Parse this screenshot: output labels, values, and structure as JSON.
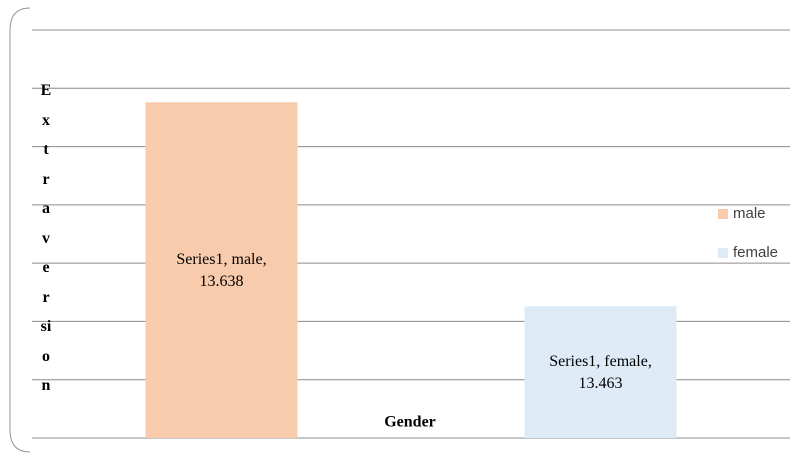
{
  "chart_data": {
    "type": "bar",
    "y_label": "Extraversion",
    "x_label": "Gender",
    "categories": [
      "male",
      "female"
    ],
    "series": [
      {
        "name": "Series1",
        "colors": [
          "#f8cbad",
          "#deebf7"
        ],
        "values": [
          13.638,
          13.463
        ],
        "value_labels": [
          "Series1, male, 13.638",
          "Series1, female, 13.463"
        ]
      }
    ],
    "ylim": [
      13.35,
      13.7
    ],
    "yticks": [
      13.35,
      13.4,
      13.45,
      13.5,
      13.55,
      13.6,
      13.65,
      13.7
    ],
    "grid": true,
    "legend": "right"
  }
}
